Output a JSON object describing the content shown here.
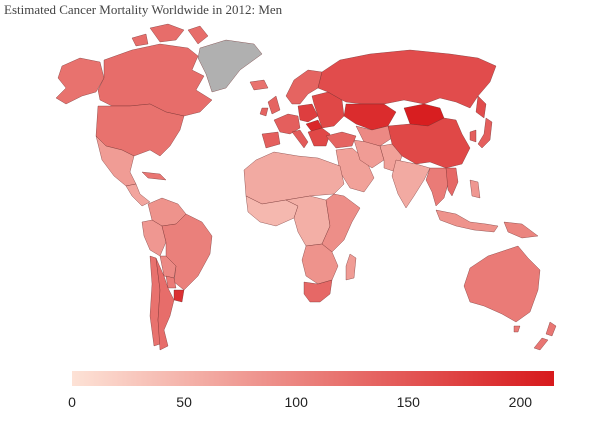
{
  "title": "Estimated Cancer Mortality Worldwide in 2012: Men",
  "legend": {
    "min": 0,
    "max": 215,
    "color_low": "#fde2d6",
    "color_high": "#d7191c",
    "ticks": [
      {
        "value": 0,
        "label": "0"
      },
      {
        "value": 50,
        "label": "50"
      },
      {
        "value": 100,
        "label": "100"
      },
      {
        "value": 150,
        "label": "150"
      },
      {
        "value": 200,
        "label": "200"
      }
    ]
  },
  "no_data_color": "#b0b0b0",
  "regions": [
    {
      "id": "canada",
      "value": 125
    },
    {
      "id": "alaska",
      "value": 120
    },
    {
      "id": "usa",
      "value": 120
    },
    {
      "id": "mexico",
      "value": 75
    },
    {
      "id": "central-america",
      "value": 65
    },
    {
      "id": "cuba",
      "value": 115
    },
    {
      "id": "greenland",
      "value": null
    },
    {
      "id": "colombia-venezuela",
      "value": 85
    },
    {
      "id": "peru-ecuador",
      "value": 80
    },
    {
      "id": "brazil",
      "value": 105
    },
    {
      "id": "bolivia",
      "value": 95
    },
    {
      "id": "chile",
      "value": 120
    },
    {
      "id": "argentina",
      "value": 125
    },
    {
      "id": "paraguay",
      "value": 110
    },
    {
      "id": "uruguay",
      "value": 190
    },
    {
      "id": "iceland",
      "value": 120
    },
    {
      "id": "uk-ireland",
      "value": 135
    },
    {
      "id": "scandinavia",
      "value": 135
    },
    {
      "id": "western-europe",
      "value": 140
    },
    {
      "id": "iberia",
      "value": 140
    },
    {
      "id": "italy",
      "value": 145
    },
    {
      "id": "central-europe",
      "value": 175
    },
    {
      "id": "eastern-europe",
      "value": 165
    },
    {
      "id": "balkans",
      "value": 165
    },
    {
      "id": "hungary",
      "value": 200
    },
    {
      "id": "russia",
      "value": 160
    },
    {
      "id": "kazakhstan",
      "value": 195
    },
    {
      "id": "central-asia",
      "value": 95
    },
    {
      "id": "mongolia",
      "value": 210
    },
    {
      "id": "china",
      "value": 165
    },
    {
      "id": "korea-japan",
      "value": 140
    },
    {
      "id": "turkey-caucasus",
      "value": 135
    },
    {
      "id": "middle-east",
      "value": 70
    },
    {
      "id": "iran",
      "value": 75
    },
    {
      "id": "afghanistan-pakistan",
      "value": 70
    },
    {
      "id": "india",
      "value": 60
    },
    {
      "id": "mainland-southeast-asia",
      "value": 110
    },
    {
      "id": "vietnam",
      "value": 130
    },
    {
      "id": "philippines",
      "value": 80
    },
    {
      "id": "indonesia",
      "value": 85
    },
    {
      "id": "papua-new-guinea",
      "value": 100
    },
    {
      "id": "australia",
      "value": 110
    },
    {
      "id": "new-zealand",
      "value": 115
    },
    {
      "id": "north-africa",
      "value": 60
    },
    {
      "id": "west-africa",
      "value": 45
    },
    {
      "id": "central-africa",
      "value": 55
    },
    {
      "id": "east-africa",
      "value": 90
    },
    {
      "id": "southern-africa",
      "value": 85
    },
    {
      "id": "south-africa",
      "value": 130
    },
    {
      "id": "madagascar",
      "value": 75
    }
  ]
}
